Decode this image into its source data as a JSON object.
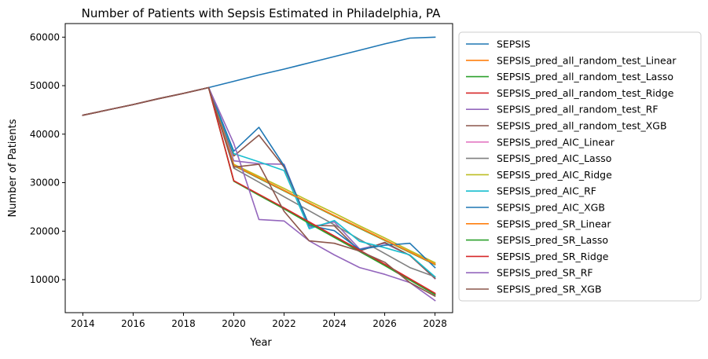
{
  "chart_data": {
    "type": "line",
    "title": "Number of Patients with Sepsis Estimated in Philadelphia, PA",
    "xlabel": "Year",
    "ylabel": "Number of Patients",
    "xlim": [
      2013.3,
      2028.7
    ],
    "ylim": [
      3200,
      62800
    ],
    "xticks": [
      2014,
      2016,
      2018,
      2020,
      2022,
      2024,
      2026,
      2028
    ],
    "yticks": [
      10000,
      20000,
      30000,
      40000,
      50000,
      60000
    ],
    "grid": false,
    "legend_position": "outside-right",
    "x": [
      2014,
      2015,
      2016,
      2017,
      2018,
      2019,
      2020,
      2021,
      2022,
      2023,
      2024,
      2025,
      2026,
      2027,
      2028
    ],
    "series": [
      {
        "name": "SEPSIS",
        "color": "#1f77b4",
        "values": [
          43900,
          45000,
          46100,
          47300,
          48400,
          49600,
          50900,
          52200,
          53400,
          54700,
          56000,
          57300,
          58600,
          59800,
          60000
        ]
      },
      {
        "name": "SEPSIS_pred_all_random_test_Linear",
        "color": "#ff7f0e",
        "values": [
          43900,
          45000,
          46100,
          47300,
          48400,
          49600,
          33600,
          31000,
          28400,
          25800,
          23200,
          20700,
          18200,
          15700,
          13200
        ]
      },
      {
        "name": "SEPSIS_pred_all_random_test_Lasso",
        "color": "#2ca02c",
        "values": [
          43900,
          45000,
          46100,
          47300,
          48400,
          49600,
          33500,
          30900,
          28300,
          25700,
          23100,
          20600,
          18100,
          15600,
          13100
        ]
      },
      {
        "name": "SEPSIS_pred_all_random_test_Ridge",
        "color": "#d62728",
        "values": [
          43900,
          45000,
          46100,
          47300,
          48400,
          49600,
          30400,
          27500,
          24700,
          21700,
          18800,
          15900,
          13000,
          10000,
          7000
        ]
      },
      {
        "name": "SEPSIS_pred_all_random_test_RF",
        "color": "#9467bd",
        "values": [
          43900,
          45000,
          46100,
          47300,
          48400,
          49600,
          34500,
          33900,
          33800,
          20800,
          21900,
          16300,
          17500,
          15000,
          10200
        ]
      },
      {
        "name": "SEPSIS_pred_all_random_test_XGB",
        "color": "#8c564b",
        "values": [
          43900,
          45000,
          46100,
          47300,
          48400,
          49600,
          35500,
          39800,
          33200,
          21200,
          21100,
          15900,
          17700,
          15000,
          10300
        ]
      },
      {
        "name": "SEPSIS_pred_AIC_Linear",
        "color": "#e377c2",
        "values": [
          43900,
          45000,
          46100,
          47300,
          48400,
          49600,
          33600,
          31000,
          28400,
          25800,
          23200,
          20700,
          18200,
          15700,
          13200
        ]
      },
      {
        "name": "SEPSIS_pred_AIC_Lasso",
        "color": "#7f7f7f",
        "values": [
          43900,
          45000,
          46100,
          47300,
          48400,
          49600,
          33000,
          30100,
          27100,
          24200,
          21300,
          18300,
          15400,
          12500,
          10600
        ]
      },
      {
        "name": "SEPSIS_pred_AIC_Ridge",
        "color": "#bcbd22",
        "values": [
          43900,
          45000,
          46100,
          47300,
          48400,
          49600,
          33800,
          31300,
          28800,
          26200,
          23700,
          21100,
          18600,
          16000,
          13500
        ]
      },
      {
        "name": "SEPSIS_pred_AIC_RF",
        "color": "#17becf",
        "values": [
          43900,
          45000,
          46100,
          47300,
          48400,
          49600,
          36000,
          34300,
          32500,
          20500,
          22200,
          17900,
          16600,
          15100,
          10600
        ]
      },
      {
        "name": "SEPSIS_pred_AIC_XGB",
        "color": "#1f77b4",
        "values": [
          43900,
          45000,
          46100,
          47300,
          48400,
          49600,
          36500,
          41400,
          33500,
          21200,
          20100,
          16200,
          17100,
          17500,
          12500
        ]
      },
      {
        "name": "SEPSIS_pred_SR_Linear",
        "color": "#ff7f0e",
        "values": [
          43900,
          45000,
          46100,
          47300,
          48400,
          49600,
          33600,
          31000,
          28400,
          25800,
          23200,
          20700,
          18200,
          15700,
          13200
        ]
      },
      {
        "name": "SEPSIS_pred_SR_Lasso",
        "color": "#2ca02c",
        "values": [
          43900,
          45000,
          46100,
          47300,
          48400,
          49600,
          30300,
          27400,
          24600,
          21600,
          18700,
          15800,
          12900,
          9900,
          6900
        ]
      },
      {
        "name": "SEPSIS_pred_SR_Ridge",
        "color": "#d62728",
        "values": [
          43900,
          45000,
          46100,
          47300,
          48400,
          49600,
          30400,
          27600,
          24800,
          21900,
          19000,
          16100,
          13200,
          10200,
          7200
        ]
      },
      {
        "name": "SEPSIS_pred_SR_RF",
        "color": "#9467bd",
        "values": [
          43900,
          45000,
          46100,
          47300,
          48400,
          49600,
          38100,
          22400,
          22100,
          18000,
          15100,
          12500,
          11100,
          9400,
          5700
        ]
      },
      {
        "name": "SEPSIS_pred_SR_XGB",
        "color": "#8c564b",
        "values": [
          43900,
          45000,
          46100,
          47300,
          48400,
          49600,
          33200,
          33800,
          24100,
          18000,
          17500,
          15900,
          13600,
          9400,
          6600
        ]
      }
    ]
  }
}
